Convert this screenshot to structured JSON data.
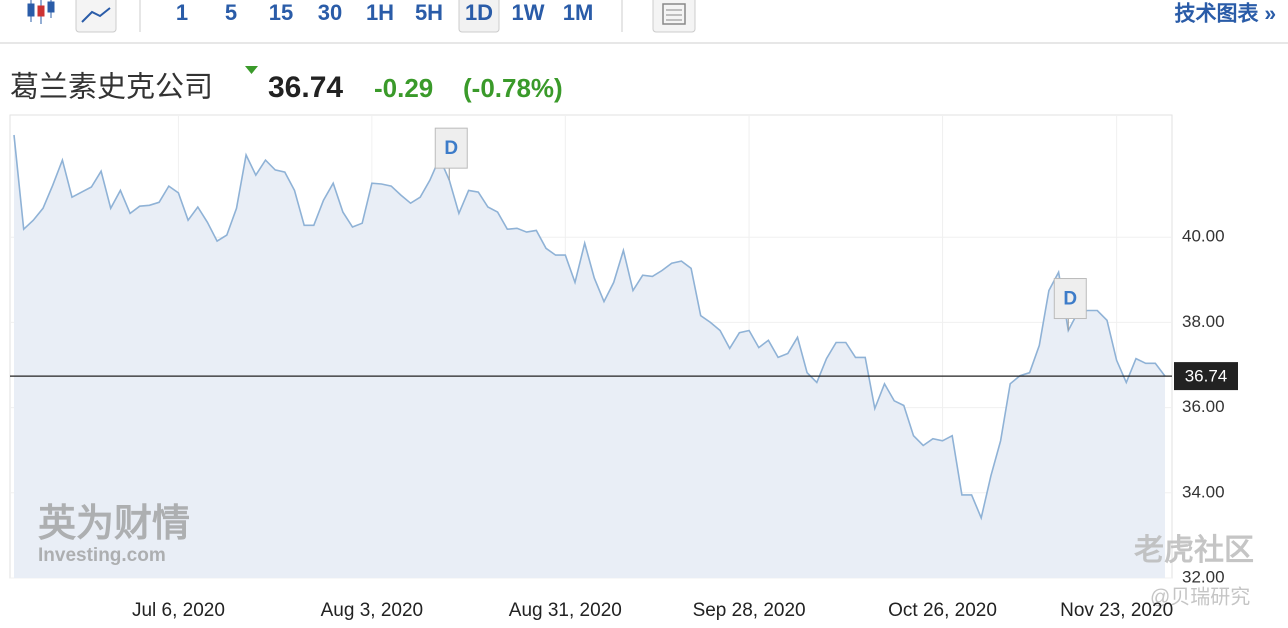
{
  "toolbar": {
    "intervals": [
      "1",
      "5",
      "15",
      "30",
      "1H",
      "5H",
      "1D",
      "1W",
      "1M"
    ],
    "selected": "1D",
    "link": "技术图表 »"
  },
  "header": {
    "name": "葛兰素史克公司",
    "price": 36.74,
    "change": -0.29,
    "change_pct": "(-0.78%)"
  },
  "chart_data": {
    "type": "area",
    "categories": [
      null,
      null,
      null,
      null,
      null,
      null,
      null,
      null,
      null,
      null,
      null,
      null,
      null,
      null,
      null,
      null,
      null,
      "Jul 6, 2020",
      null,
      null,
      null,
      null,
      null,
      null,
      null,
      null,
      null,
      null,
      null,
      null,
      null,
      null,
      null,
      null,
      null,
      null,
      null,
      "Aug 3, 2020",
      null,
      null,
      null,
      null,
      null,
      null,
      null,
      null,
      null,
      null,
      null,
      null,
      null,
      null,
      null,
      null,
      null,
      null,
      null,
      "Aug 31, 2020",
      null,
      null,
      null,
      null,
      null,
      null,
      null,
      null,
      null,
      null,
      null,
      null,
      null,
      null,
      null,
      null,
      null,
      null,
      "Sep 28, 2020",
      null,
      null,
      null,
      null,
      null,
      null,
      null,
      null,
      null,
      null,
      null,
      null,
      null,
      null,
      null,
      null,
      null,
      null,
      null,
      "Oct 26, 2020",
      null,
      null,
      null,
      null,
      null,
      null,
      null,
      null,
      null,
      null,
      null,
      null,
      null,
      null,
      null,
      null,
      null,
      "Nov 23, 2020",
      null,
      null,
      null,
      null,
      null
    ],
    "series": [
      {
        "name": "葛兰素史克公司",
        "color": "#8fb2d6",
        "values": [
          42.4,
          40.19,
          40.4,
          40.68,
          41.22,
          41.81,
          40.94,
          41.06,
          41.18,
          41.55,
          40.68,
          41.1,
          40.56,
          40.73,
          40.75,
          40.82,
          41.2,
          41.04,
          40.4,
          40.71,
          40.35,
          39.91,
          40.05,
          40.68,
          41.93,
          41.46,
          41.81,
          41.58,
          41.53,
          41.1,
          40.28,
          40.28,
          40.87,
          41.27,
          40.59,
          40.24,
          40.33,
          41.27,
          41.25,
          41.2,
          40.99,
          40.8,
          40.94,
          41.34,
          41.86,
          41.34,
          40.56,
          41.1,
          41.06,
          40.71,
          40.59,
          40.19,
          40.21,
          40.12,
          40.16,
          39.74,
          39.58,
          39.58,
          38.94,
          39.86,
          39.04,
          38.49,
          38.94,
          39.69,
          38.75,
          39.11,
          39.08,
          39.22,
          39.39,
          39.44,
          39.27,
          38.16,
          38.0,
          37.81,
          37.39,
          37.76,
          37.81,
          37.41,
          37.58,
          37.18,
          37.27,
          37.65,
          36.82,
          36.59,
          37.15,
          37.53,
          37.53,
          37.18,
          37.18,
          35.98,
          36.56,
          36.16,
          36.05,
          35.34,
          35.11,
          35.27,
          35.22,
          35.34,
          33.95,
          33.95,
          33.41,
          34.4,
          35.22,
          36.56,
          36.75,
          36.82,
          37.46,
          38.75,
          39.18,
          37.81,
          38.24,
          38.28,
          38.28,
          38.05,
          37.11,
          36.59,
          37.15,
          37.04,
          37.04,
          36.74
        ]
      }
    ],
    "last_price": 36.74,
    "ylim": [
      32,
      42.87
    ],
    "yticks": [
      {
        "value": 32,
        "label": "32.00"
      },
      {
        "value": 34,
        "label": "34.00"
      },
      {
        "value": 36,
        "label": "36.00"
      },
      {
        "value": 38,
        "label": "38.00"
      },
      {
        "value": 40,
        "label": "40.00"
      }
    ],
    "grid": true,
    "annotations": [
      "D",
      "D"
    ]
  },
  "watermarks": [
    "英为财情",
    "Investing.com",
    "老虎社区",
    "@贝瑞研究"
  ]
}
